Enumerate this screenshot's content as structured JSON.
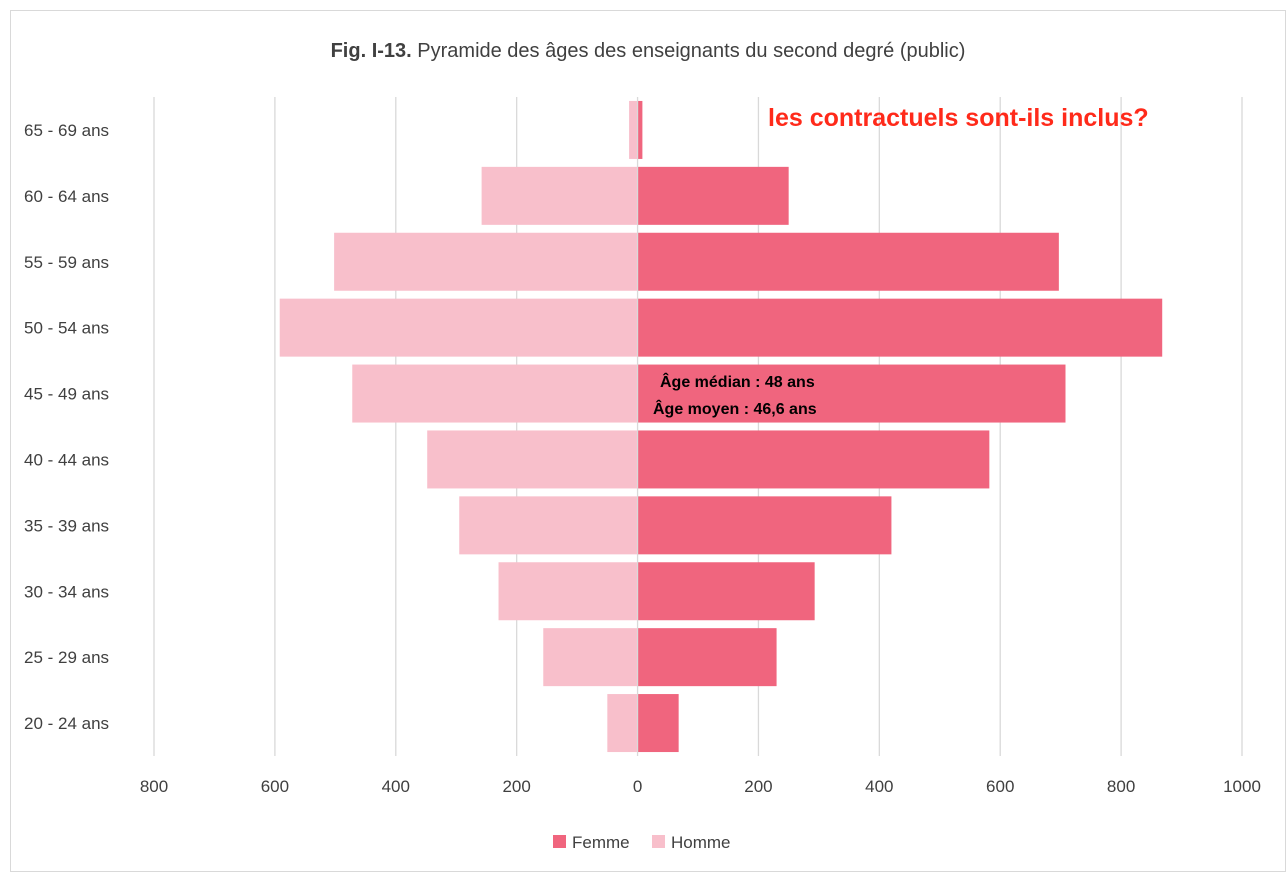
{
  "chart_data": {
    "type": "bar",
    "orientation": "horizontal",
    "title_bold": "Fig. I-13.",
    "title": "Pyramide des âges des enseignants du second degré (public)",
    "categories": [
      "20 - 24 ans",
      "25 - 29 ans",
      "30 - 34 ans",
      "35 - 39 ans",
      "40 - 44 ans",
      "45 - 49 ans",
      "50 - 54 ans",
      "55 - 59 ans",
      "60 - 64 ans",
      "65 - 69 ans"
    ],
    "series": [
      {
        "name": "Femme",
        "color": "#f0657e",
        "values": [
          68,
          230,
          293,
          420,
          582,
          708,
          868,
          697,
          250,
          8
        ]
      },
      {
        "name": "Homme",
        "color": "#f8bfcb",
        "values": [
          50,
          156,
          230,
          295,
          348,
          472,
          592,
          502,
          258,
          14
        ]
      }
    ],
    "xlim": [
      -800,
      1000
    ],
    "x_ticks": [
      -800,
      -600,
      -400,
      -200,
      0,
      200,
      400,
      600,
      800,
      1000
    ],
    "x_tick_labels": [
      "800",
      "600",
      "400",
      "200",
      "0",
      "200",
      "400",
      "600",
      "800",
      "1000"
    ],
    "grid": true,
    "legend_position": "bottom",
    "annotations": [
      "Âge médian : 48 ans",
      "Âge moyen : 46,6 ans"
    ],
    "note": "les contractuels sont-ils inclus?",
    "xlabel": "",
    "ylabel": ""
  }
}
